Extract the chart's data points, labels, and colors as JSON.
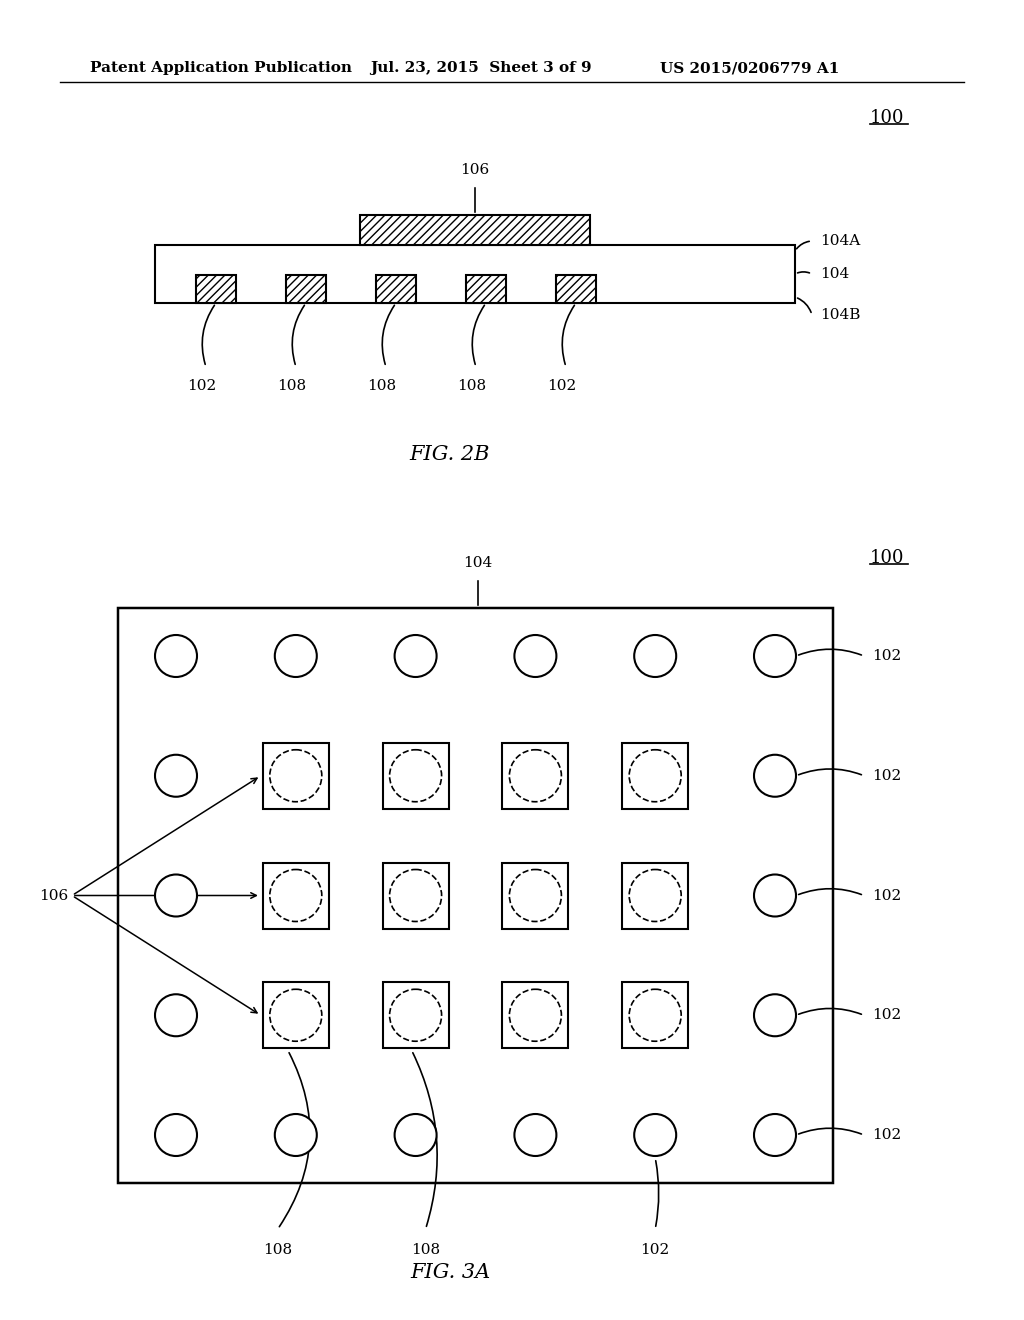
{
  "header_left": "Patent Application Publication",
  "header_mid": "Jul. 23, 2015  Sheet 3 of 9",
  "header_right": "US 2015/0206779 A1",
  "background_color": "#ffffff",
  "line_color": "#000000",
  "fig2b_label": "FIG. 2B",
  "fig3a_label": "FIG. 3A",
  "ref_100": "100",
  "ref_102": "102",
  "ref_104": "104",
  "ref_104A": "104A",
  "ref_104B": "104B",
  "ref_106": "106",
  "ref_108": "108"
}
